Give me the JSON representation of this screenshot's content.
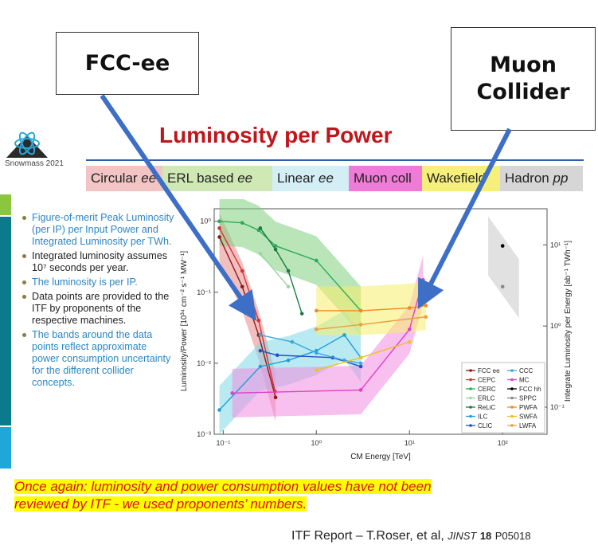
{
  "callouts": {
    "left": "FCC-ee",
    "right_line1": "Muon",
    "right_line2": "Collider"
  },
  "logo": {
    "text": "Snowmass 2021"
  },
  "title": "Luminosity per Power",
  "categories": [
    {
      "label": "Circular ",
      "em": "ee",
      "color": "#f2c4c4"
    },
    {
      "label": "ERL based ",
      "em": "ee",
      "color": "#cfe8b4"
    },
    {
      "label": "Linear ",
      "em": "ee",
      "color": "#d4eef5"
    },
    {
      "label": "Muon coll",
      "em": "",
      "color": "#f07ad8"
    },
    {
      "label": "Wakefield",
      "em": "",
      "color": "#f6f07a"
    },
    {
      "label": "Hadron ",
      "em": "pp",
      "color": "#d6d6d6"
    }
  ],
  "notes": [
    "Figure-of-merit Peak Luminosity (per IP) per Input Power and Integrated Luminosity per TWh.",
    "Integrated luminosity assumes 10⁷ seconds per year.",
    "The luminosity is per IP.",
    "Data points are provided to the ITF by proponents of the respective machines.",
    "The bands around the data points reflect approximate power consumption uncertainty for the different collider concepts."
  ],
  "banner": {
    "line1": "Once again: luminosity and power consumption values have not been",
    "line2": "reviewed by ITF - we used proponents’ numbers."
  },
  "reference": {
    "text": "ITF Report – T.Roser, et al,",
    "journal": "JINST",
    "volume": "18",
    "page": "P05018"
  },
  "chart_data": {
    "type": "line",
    "xlabel": "CM Energy [TeV]",
    "ylabel": "Luminosity/Power [10³⁴ cm⁻² s⁻¹ MW⁻¹]",
    "y2label": "Integrate Luminosity per Energy [ab⁻¹ TWh⁻¹]",
    "xscale": "log",
    "yscale": "log",
    "xlim": [
      0.08,
      300
    ],
    "ylim": [
      0.001,
      1.5
    ],
    "xticks": [
      "10⁻¹",
      "10⁰",
      "10¹",
      "10²"
    ],
    "yticks": [
      "10⁻³",
      "10⁻²",
      "10⁻¹",
      "10⁰"
    ],
    "y2ticks": [
      "10⁻¹",
      "10⁰",
      "10¹"
    ],
    "legend_position": "lower-right",
    "series": [
      {
        "name": "FCC ee",
        "color": "#8b1a1a",
        "x": [
          0.091,
          0.16,
          0.24,
          0.365
        ],
        "y": [
          0.6,
          0.12,
          0.025,
          0.0033
        ]
      },
      {
        "name": "CEPC",
        "color": "#d83030",
        "x": [
          0.091,
          0.16,
          0.24,
          0.36
        ],
        "y": [
          0.8,
          0.2,
          0.04,
          0.004
        ]
      },
      {
        "name": "CERC",
        "color": "#2eaa58",
        "x": [
          0.091,
          0.16,
          0.24,
          0.365,
          1.0,
          3.0
        ],
        "y": [
          1.0,
          0.95,
          0.75,
          0.45,
          0.28,
          0.055
        ]
      },
      {
        "name": "ERLC",
        "color": "#9bd79b",
        "x": [
          0.25,
          0.5
        ],
        "y": [
          0.35,
          0.12
        ]
      },
      {
        "name": "ReLiC",
        "color": "#1f7a45",
        "x": [
          0.25,
          0.365,
          0.5,
          0.7
        ],
        "y": [
          0.8,
          0.4,
          0.2,
          0.05
        ]
      },
      {
        "name": "ILC",
        "color": "#1f9fd8",
        "x": [
          0.091,
          0.25,
          0.5,
          1.0,
          2.0,
          3.0
        ],
        "y": [
          0.0022,
          0.009,
          0.011,
          0.015,
          0.025,
          0.012
        ]
      },
      {
        "name": "CLIC",
        "color": "#2050c8",
        "x": [
          0.25,
          0.38,
          1.5,
          3.0
        ],
        "y": [
          0.015,
          0.013,
          0.012,
          0.009
        ]
      },
      {
        "name": "CCC",
        "color": "#3aa7e0",
        "x": [
          0.25,
          0.55,
          1.0,
          2.0,
          3.0
        ],
        "y": [
          0.025,
          0.02,
          0.014,
          0.011,
          0.01
        ]
      },
      {
        "name": "MC",
        "color": "#e040c8",
        "x": [
          0.125,
          3.0,
          10.0,
          14.0
        ],
        "y": [
          0.0038,
          0.0042,
          0.03,
          0.15
        ]
      },
      {
        "name": "FCC hh",
        "color": "#000000",
        "x": [
          100
        ],
        "y": [
          0.45
        ]
      },
      {
        "name": "SPPC",
        "color": "#888888",
        "x": [
          100
        ],
        "y": [
          0.12
        ]
      },
      {
        "name": "PWFA",
        "color": "#f08a20",
        "x": [
          1.0,
          3.0,
          10.0,
          15.0
        ],
        "y": [
          0.055,
          0.055,
          0.06,
          0.065
        ]
      },
      {
        "name": "SWFA",
        "color": "#f0c020",
        "x": [
          1.0,
          3.0,
          10.0
        ],
        "y": [
          0.008,
          0.012,
          0.02
        ]
      },
      {
        "name": "LWFA",
        "color": "#e8a040",
        "x": [
          1.0,
          3.0,
          15.0
        ],
        "y": [
          0.03,
          0.035,
          0.045
        ]
      }
    ]
  }
}
